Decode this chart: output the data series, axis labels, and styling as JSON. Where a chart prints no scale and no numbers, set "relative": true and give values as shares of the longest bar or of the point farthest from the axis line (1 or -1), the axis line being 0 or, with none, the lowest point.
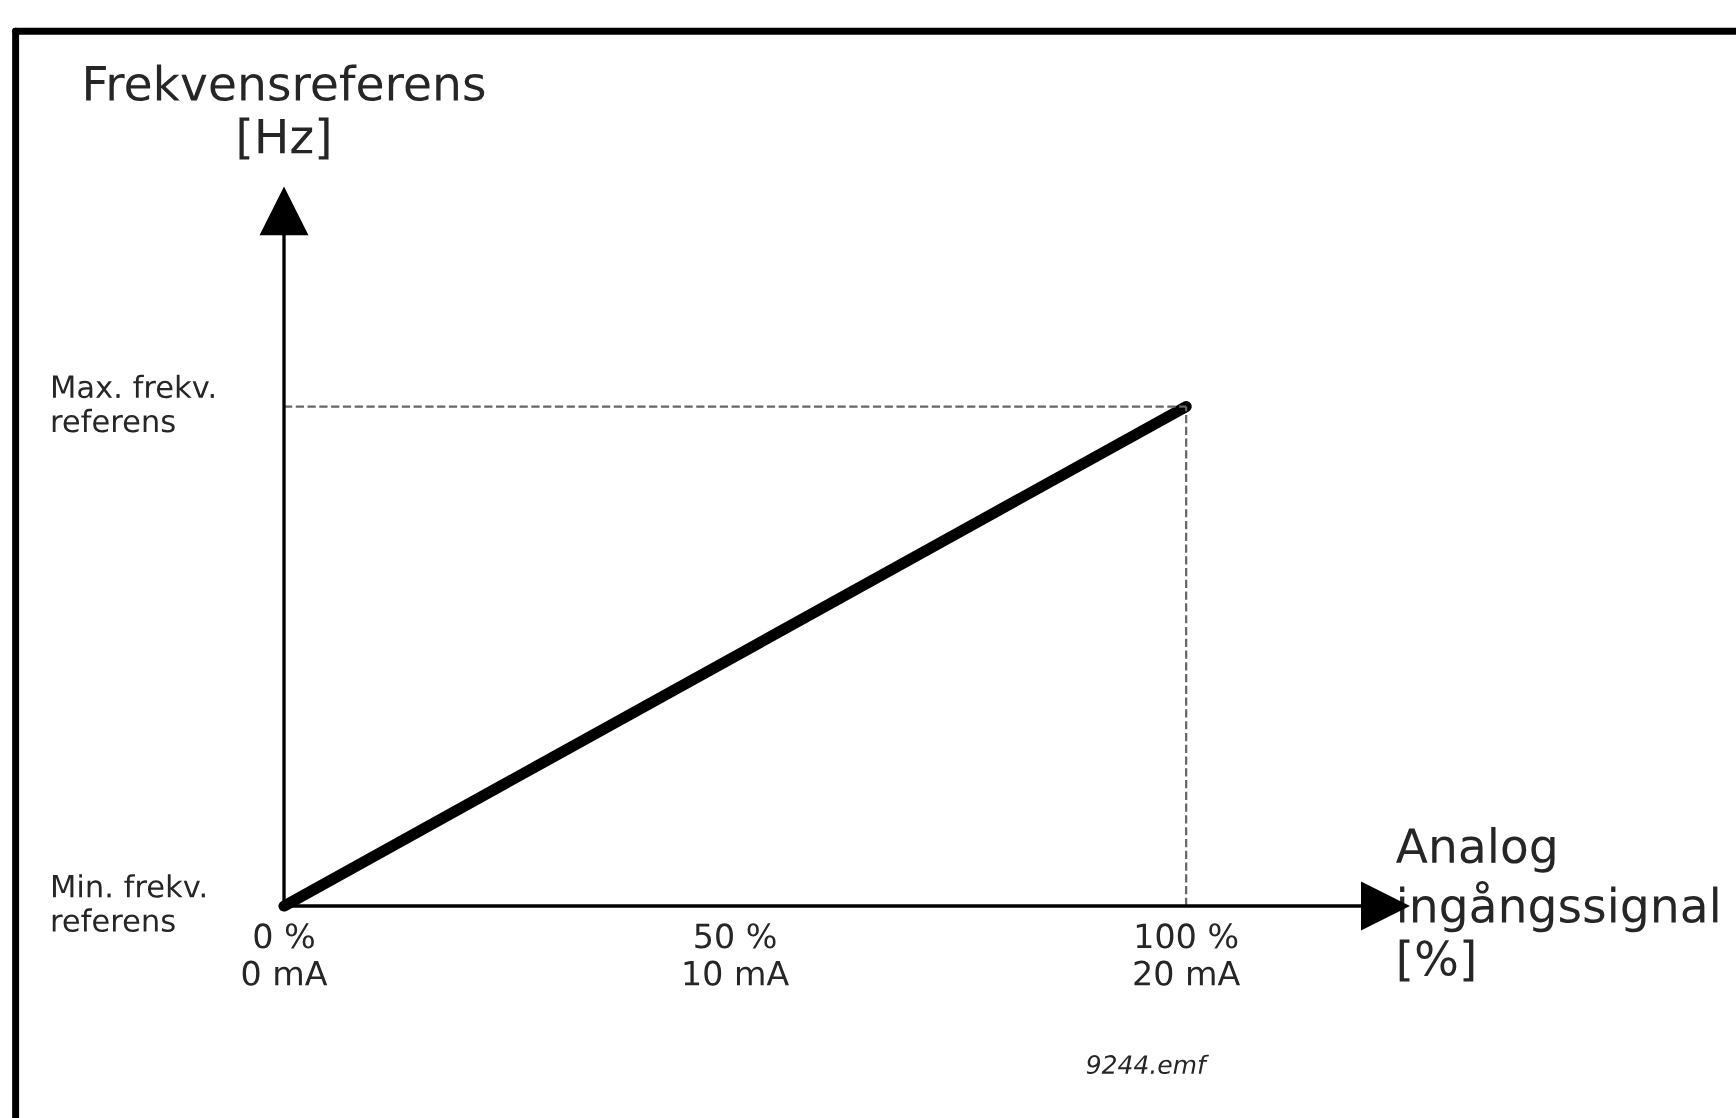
{
  "chart_data": {
    "type": "line",
    "relative": true,
    "xlabel": "Analog\ningångssignal\n[%]",
    "categories": [
      "0 %\n0 mA",
      "50 %\n10 mA",
      "100 %\n20 mA"
    ],
    "series": [
      {
        "color": "#000000",
        "values": [
          0,
          0.5,
          1
        ],
        "line_style": "solid"
      },
      {
        "color": "#666666",
        "values": [
          1,
          1,
          1
        ],
        "line_style": "dashed"
      }
    ],
    "ref_lines": [
      {
        "axis": "x",
        "value": "100 %\n20 mA",
        "color": "#666666",
        "line_style": "dashed"
      }
    ],
    "annotations": [
      "Frekvensreferens\n[Hz]",
      "Min. frekv.\nreferens",
      "Max. frekv.\nreferens",
      "9244.emf"
    ],
    "grid": false
  }
}
